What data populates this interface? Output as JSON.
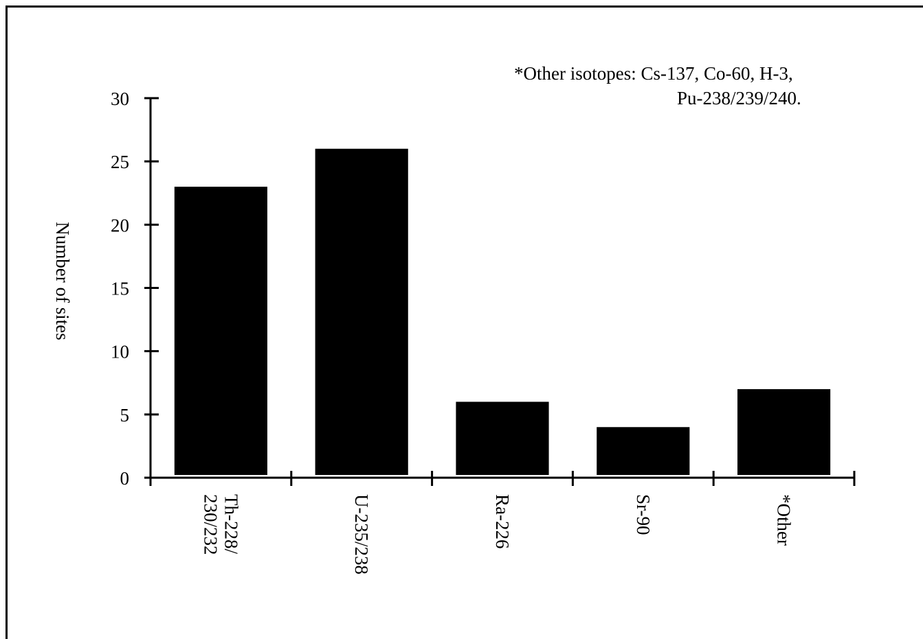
{
  "chart_data": {
    "type": "bar",
    "categories": [
      "Th-228/\n230/232",
      "U-235/238",
      "Ra-226",
      "Sr-90",
      "*Other"
    ],
    "values": [
      23,
      26,
      6,
      4,
      7
    ],
    "title": "",
    "xlabel": "",
    "ylabel": "Number of sites",
    "ylim": [
      0,
      30
    ],
    "yticks": [
      0,
      5,
      10,
      15,
      20,
      25,
      30
    ],
    "grid": false,
    "bar_color": "#000000",
    "annotation": {
      "line1": "*Other isotopes:  Cs-137, Co-60, H-3,",
      "line2": "Pu-238/239/240."
    }
  }
}
